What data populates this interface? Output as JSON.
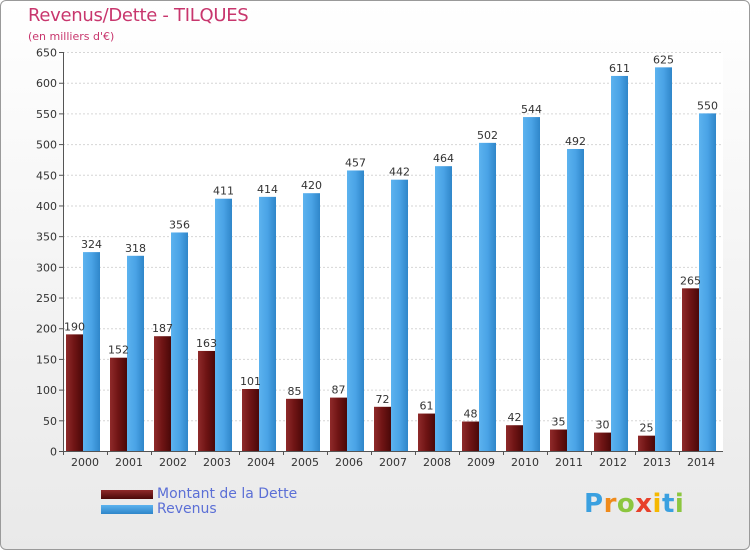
{
  "header": {
    "title": "Revenus/Dette - TILQUES",
    "subtitle": "(en milliers d'€)"
  },
  "logo": {
    "letters": [
      "P",
      "r",
      "o",
      "x",
      "i",
      "t",
      "i"
    ],
    "colors": [
      "#3aa0e0",
      "#f08a1a",
      "#8cc63f",
      "#e8402a",
      "#f5b800",
      "#3aa0e0",
      "#8cc63f"
    ]
  },
  "chart_data": {
    "type": "bar",
    "categories": [
      "2000",
      "2001",
      "2002",
      "2003",
      "2004",
      "2005",
      "2006",
      "2007",
      "2008",
      "2009",
      "2010",
      "2011",
      "2012",
      "2013",
      "2014"
    ],
    "series": [
      {
        "name": "Montant de la Dette",
        "color": "#7a1a1a",
        "values": [
          190,
          152,
          187,
          163,
          101,
          85,
          87,
          72,
          61,
          48,
          42,
          35,
          30,
          25,
          265
        ]
      },
      {
        "name": "Revenus",
        "color": "#4aa3e6",
        "values": [
          324,
          318,
          356,
          411,
          414,
          420,
          457,
          442,
          464,
          502,
          544,
          492,
          611,
          625,
          550
        ]
      }
    ],
    "ylim": [
      0,
      650
    ],
    "yticks": [
      0,
      50,
      100,
      150,
      200,
      250,
      300,
      350,
      400,
      450,
      500,
      550,
      600,
      650
    ],
    "grid": true,
    "legend_position": "bottom-left"
  }
}
